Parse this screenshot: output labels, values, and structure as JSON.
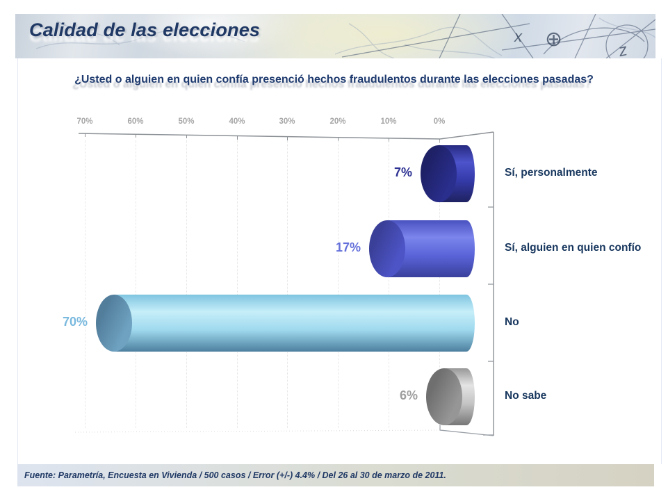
{
  "slide": {
    "title": "Calidad de las elecciones",
    "question": "¿Usted o alguien en quien confía presenció hechos fraudulentos durante las elecciones pasadas?",
    "source": "Fuente: Parametría, Encuesta en Vivienda / 500 casos / Error (+/-) 4.4% / Del 26 al 30 de marzo de 2011."
  },
  "header": {
    "icons": {
      "x_glyph": "x",
      "z_glyph": "z",
      "compass_glyph": "⊕"
    }
  },
  "colors": {
    "title_text": "#1f3864",
    "question_text": "#1e3a6e",
    "category_text": "#17365d",
    "axis_text": "#a6a6a6",
    "footer_text": "#1f3864",
    "footer_band_left": "#dde4ef",
    "footer_band_mid": "#dadcd2",
    "footer_band_right": "#d5d2c3"
  },
  "chart_data": {
    "type": "bar",
    "style": "3d-cylinder-horizontal",
    "title": "¿Usted o alguien en quien confía presenció hechos fraudulentos durante las elecciones pasadas?",
    "xlabel": "",
    "ylabel": "",
    "legend": false,
    "axis": {
      "ticks": [
        "70%",
        "60%",
        "50%",
        "40%",
        "30%",
        "20%",
        "10%",
        "0%"
      ],
      "min": 0,
      "max": 70,
      "reversed": true,
      "unit": "%"
    },
    "categories": [
      "Sí, personalmente",
      "Sí, alguien en quien confío",
      "No",
      "No sabe"
    ],
    "values": [
      7,
      17,
      70,
      6
    ],
    "points": [
      {
        "category": "Sí, personalmente",
        "value": 7,
        "label": "7%",
        "label_color": "#2d3192",
        "shade_top": "#262a80",
        "shade_light": "#4d54cc",
        "shade_mid": "#343aa8",
        "shade_bottom": "#1f2260",
        "cap": "#2a2e8c",
        "cap_dark": "#1e2166"
      },
      {
        "category": "Sí, alguien en quien confío",
        "value": 17,
        "label": "17%",
        "label_color": "#6470da",
        "shade_top": "#4a52c0",
        "shade_light": "#7b85ec",
        "shade_mid": "#5a64d8",
        "shade_bottom": "#39409c",
        "cap": "#4d54c6",
        "cap_dark": "#3a4098"
      },
      {
        "category": "No",
        "value": 70,
        "label": "70%",
        "label_color": "#7ab9de",
        "shade_top": "#7fc4e0",
        "shade_light": "#c6eef9",
        "shade_mid": "#9fd9ee",
        "shade_bottom": "#4c7f9e",
        "cap": "#6ea2c0",
        "cap_dark": "#527e9c"
      },
      {
        "category": "No sabe",
        "value": 6,
        "label": "6%",
        "label_color": "#9e9e9e",
        "shade_top": "#989898",
        "shade_light": "#e4e4e4",
        "shade_mid": "#c4c4c4",
        "shade_bottom": "#777777",
        "cap": "#969696",
        "cap_dark": "#6f6f6f"
      }
    ]
  }
}
